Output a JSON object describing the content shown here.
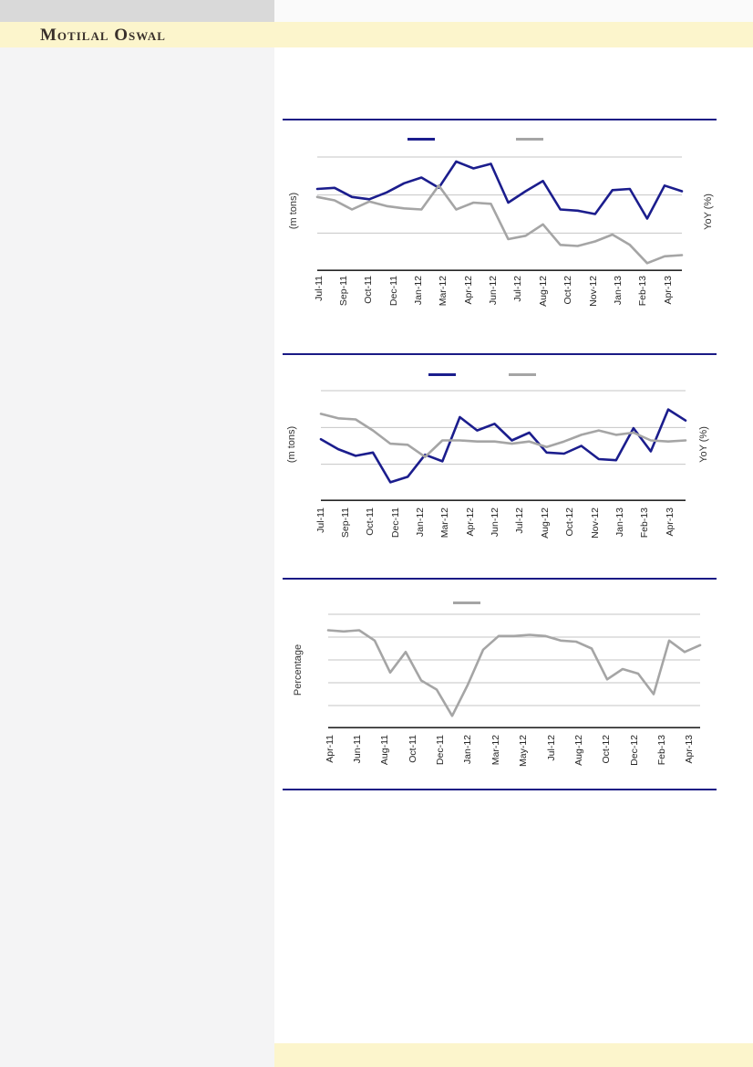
{
  "header": {
    "brand": "Motilal Oswal"
  },
  "colors": {
    "navy": "#1b1d8d",
    "gray": "#a5a5a5",
    "grid": "#c6c6c6",
    "axis": "#262626",
    "divider": "#1a1a85",
    "yellow": "#fcf5cc",
    "sidebar": "#f4f4f5",
    "topbar": "#d9d9d9"
  },
  "chart_data": [
    {
      "type": "line",
      "title": "",
      "left_axis_label": "(m tons)",
      "right_axis_label": "YoY (%)",
      "x_labels": [
        "Jul-11",
        "Sep-11",
        "Oct-11",
        "Dec-11",
        "Jan-12",
        "Mar-12",
        "Apr-12",
        "Jun-12",
        "Jul-12",
        "Aug-12",
        "Oct-12",
        "Nov-12",
        "Jan-13",
        "Feb-13",
        "Apr-13"
      ],
      "grid_divisions": 3,
      "y_ticks_visible": false,
      "legend_labels": [
        "",
        ""
      ],
      "series": [
        {
          "name": "navy-series",
          "color_key": "navy",
          "values": [
            72,
            73,
            65,
            63,
            69,
            77,
            82,
            73,
            96,
            90,
            94,
            60,
            70,
            79,
            54,
            53,
            50,
            71,
            72,
            46,
            75,
            70
          ]
        },
        {
          "name": "gray-series",
          "color_key": "gray",
          "values": [
            65,
            62,
            54,
            61,
            57,
            55,
            54,
            75,
            54,
            60,
            59,
            28,
            31,
            41,
            23,
            22,
            26,
            32,
            23,
            7,
            13,
            14
          ]
        }
      ]
    },
    {
      "type": "line",
      "title": "",
      "left_axis_label": "(m tons)",
      "right_axis_label": "YoY (%)",
      "x_labels": [
        "Jul-11",
        "Sep-11",
        "Oct-11",
        "Dec-11",
        "Jan-12",
        "Mar-12",
        "Apr-12",
        "Jun-12",
        "Jul-12",
        "Aug-12",
        "Oct-12",
        "Nov-12",
        "Jan-13",
        "Feb-13",
        "Apr-13"
      ],
      "grid_divisions": 3,
      "y_ticks_visible": false,
      "legend_labels": [
        "",
        ""
      ],
      "series": [
        {
          "name": "navy-series",
          "color_key": "navy",
          "values": [
            56,
            47,
            41,
            44,
            17,
            22,
            42,
            36,
            76,
            64,
            70,
            55,
            62,
            44,
            43,
            50,
            38,
            37,
            66,
            45,
            83,
            73
          ]
        },
        {
          "name": "gray-series",
          "color_key": "gray",
          "values": [
            79,
            75,
            74,
            64,
            52,
            51,
            40,
            55,
            55,
            54,
            54,
            52,
            54,
            49,
            54,
            60,
            64,
            60,
            62,
            55,
            54,
            55
          ]
        }
      ]
    },
    {
      "type": "line",
      "title": "",
      "left_axis_label": "Percentage",
      "right_axis_label": "",
      "x_labels": [
        "Apr-11",
        "Jun-11",
        "Aug-11",
        "Oct-11",
        "Dec-11",
        "Jan-12",
        "Mar-12",
        "May-12",
        "Jul-12",
        "Aug-12",
        "Oct-12",
        "Dec-12",
        "Feb-13",
        "Apr-13"
      ],
      "grid_divisions": 5,
      "y_ticks_visible": false,
      "legend_labels": [
        ""
      ],
      "series": [
        {
          "name": "gray-series",
          "color_key": "gray",
          "values": [
            86,
            85,
            86,
            77,
            49,
            67,
            42,
            34,
            11,
            38,
            69,
            81,
            81,
            82,
            81,
            77,
            76,
            70,
            43,
            52,
            48,
            30,
            77,
            67,
            73
          ]
        }
      ]
    }
  ]
}
